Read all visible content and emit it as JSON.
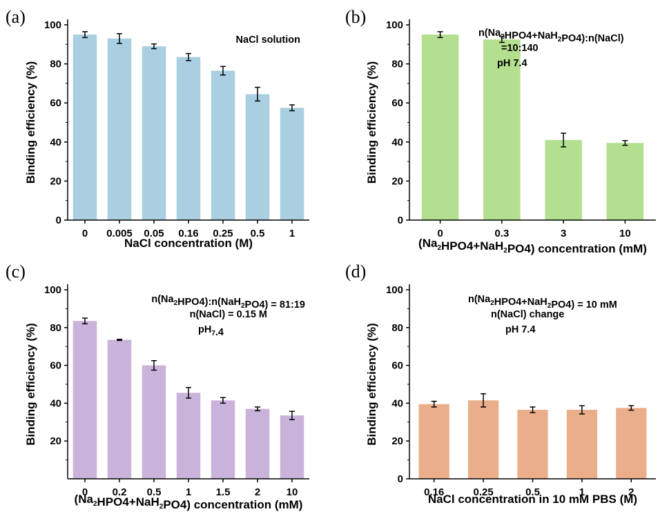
{
  "chart_data": [
    {
      "panel": "(a)",
      "type": "bar",
      "annotations": [
        "NaCl solution"
      ],
      "xlabel": "NaCl concentration (M)",
      "ylabel": "Binding efficiency (%)",
      "ylim": [
        0,
        100
      ],
      "yticks": [
        0,
        20,
        40,
        60,
        80,
        100
      ],
      "categories": [
        "0",
        "0.005",
        "0.05",
        "0.16",
        "0.25",
        "0.5",
        "1"
      ],
      "values": [
        95,
        93,
        89,
        83.5,
        76.5,
        64.5,
        57.5
      ],
      "errors": [
        1.5,
        2.5,
        1.2,
        1.8,
        2.2,
        3.5,
        1.5
      ],
      "color": "#a9cfe1",
      "grid": false,
      "legend": "none"
    },
    {
      "panel": "(b)",
      "type": "bar",
      "annotations": [
        "n(Na₂HPO₄+NaH₂PO₄):n(NaCl)",
        "=10:140",
        "pH 7.4"
      ],
      "xlabel": "(Na₂HPO₄+NaH₂PO₄) concentration (mM)",
      "ylabel": "Binding efficiency (%)",
      "ylim": [
        0,
        100
      ],
      "yticks": [
        0,
        20,
        40,
        60,
        80,
        100
      ],
      "categories": [
        "0",
        "0.3",
        "3",
        "10"
      ],
      "values": [
        95,
        92.5,
        41,
        39.5
      ],
      "errors": [
        1.5,
        1.5,
        3.5,
        1.2
      ],
      "color": "#b3df8e",
      "grid": false,
      "legend": "none"
    },
    {
      "panel": "(c)",
      "type": "bar",
      "annotations": [
        "n(Na₂HPO₄):n(NaH₂PO₄) = 81:19",
        "n(NaCl) = 0.15 M",
        "pH7.4"
      ],
      "xlabel": "(Na₂HPO₄+NaH₂PO₄) concentration (mM)",
      "ylabel": "Binding efficiency (%)",
      "ylim": [
        0,
        100
      ],
      "yticks": [
        20,
        40,
        60,
        80,
        100
      ],
      "categories": [
        "0",
        "0.2",
        "0.5",
        "1",
        "1.5",
        "2",
        "10"
      ],
      "values": [
        83.5,
        73.5,
        60,
        45.5,
        41.5,
        37,
        33.5
      ],
      "errors": [
        1.5,
        0.3,
        2.5,
        2.8,
        1.5,
        1,
        2.2
      ],
      "color": "#c9b3da",
      "grid": false,
      "legend": "none"
    },
    {
      "panel": "(d)",
      "type": "bar",
      "annotations": [
        "n(Na₂HPO₄+NaH₂PO₄) = 10 mM",
        "n(NaCl) change",
        "pH 7.4"
      ],
      "xlabel": "NaCl concentration in 10 mM PBS (M)",
      "ylabel": "Binding efficiency (%)",
      "ylim": [
        0,
        100
      ],
      "yticks": [
        0,
        20,
        40,
        60,
        80,
        100
      ],
      "categories": [
        "0.16",
        "0.25",
        "0.5",
        "1",
        "2"
      ],
      "values": [
        39.5,
        41.5,
        36.5,
        36.5,
        37.5
      ],
      "errors": [
        1.5,
        3.5,
        1.5,
        2.2,
        1.2
      ],
      "color": "#ebae8b",
      "grid": false,
      "legend": "none"
    }
  ]
}
